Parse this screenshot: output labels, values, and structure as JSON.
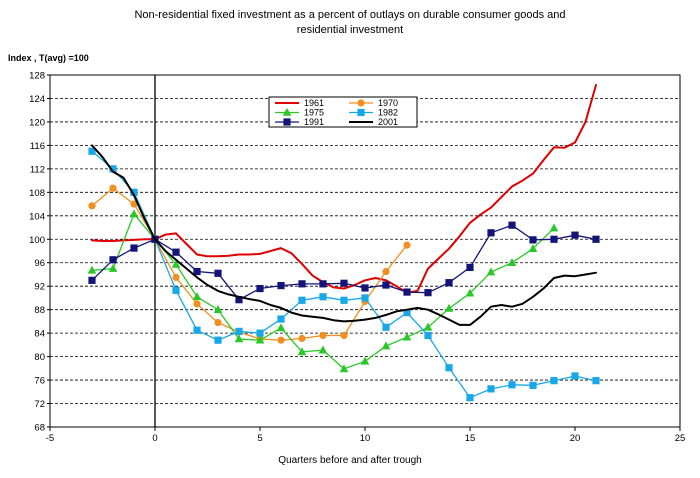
{
  "chart_data": {
    "type": "line",
    "title_line1": "Non-residential fixed investment as a percent of outlays on durable consumer goods and",
    "title_line2": "residential investment",
    "xlabel": "Quarters before and after trough",
    "ylabel": "Index , T(avg) =100",
    "xlim": [
      -5,
      25
    ],
    "ylim": [
      68,
      128
    ],
    "xticks": [
      -5,
      0,
      5,
      10,
      15,
      20,
      25
    ],
    "yticks": [
      68,
      72,
      76,
      80,
      84,
      88,
      92,
      96,
      100,
      104,
      108,
      112,
      116,
      120,
      124,
      128
    ],
    "legend_position": "top-center",
    "series": [
      {
        "name": "1961",
        "color": "#e00000",
        "marker": "none",
        "width": 2,
        "x": [
          -3,
          -2.5,
          -2,
          -1.5,
          -1,
          -0.5,
          0,
          0.5,
          1,
          1.5,
          2,
          2.5,
          3,
          3.5,
          4,
          4.5,
          5,
          5.5,
          6,
          6.5,
          7,
          7.5,
          8,
          8.5,
          9,
          9.5,
          10,
          10.5,
          11,
          11.5,
          12,
          12.5,
          13,
          13.5,
          14,
          14.5,
          15,
          15.5,
          16,
          16.5,
          17,
          17.5,
          18,
          18.5,
          19,
          19.5,
          20,
          20.5,
          21
        ],
        "y": [
          99.8,
          99.7,
          99.7,
          99.8,
          99.9,
          100,
          100,
          100.8,
          101,
          99.2,
          97.4,
          97.1,
          97.1,
          97.2,
          97.4,
          97.4,
          97.5,
          98,
          98.5,
          97.6,
          95.8,
          93.8,
          92.7,
          91.8,
          91.6,
          92.2,
          93,
          93.4,
          93,
          92,
          90.9,
          91.2,
          95,
          96.7,
          98.4,
          100.5,
          102.8,
          104.2,
          105.4,
          107.2,
          109,
          110,
          111.2,
          113.5,
          115.7,
          115.6,
          116.5,
          120,
          126.3
        ]
      },
      {
        "name": "1970",
        "color": "#f09020",
        "marker": "circle",
        "width": 1.3,
        "x": [
          -3,
          -2,
          -1,
          0,
          1,
          2,
          3,
          4,
          5,
          6,
          7,
          8,
          9,
          10,
          11,
          12
        ],
        "y": [
          105.7,
          108.7,
          106,
          100,
          93.5,
          89,
          85.8,
          84.2,
          83,
          82.8,
          83.1,
          83.6,
          83.6,
          89.4,
          94.5,
          99
        ]
      },
      {
        "name": "1975",
        "color": "#28c828",
        "marker": "triangle",
        "width": 1.3,
        "x": [
          -3,
          -2,
          -1,
          0,
          1,
          2,
          3,
          4,
          5,
          6,
          7,
          8,
          9,
          10,
          11,
          12,
          13,
          14,
          15,
          16,
          17,
          18,
          19
        ],
        "y": [
          94.7,
          95,
          104.3,
          100,
          95.7,
          90.2,
          88,
          83,
          82.8,
          84.9,
          80.8,
          81.1,
          77.9,
          79.2,
          81.8,
          83.3,
          85,
          88.2,
          90.8,
          94.4,
          96,
          98.4,
          101.9
        ]
      },
      {
        "name": "1982",
        "color": "#18a8e8",
        "marker": "square",
        "width": 1.3,
        "x": [
          -3,
          -2,
          -1,
          0,
          1,
          2,
          3,
          4,
          5,
          6,
          7,
          8,
          9,
          10,
          11,
          12,
          13,
          14,
          15,
          16,
          17,
          18,
          19,
          20,
          21
        ],
        "y": [
          115,
          112,
          108,
          100,
          91.3,
          84.5,
          82.8,
          84.3,
          84,
          86.4,
          89.6,
          90.2,
          89.6,
          90,
          85,
          87.5,
          83.6,
          78.1,
          73,
          74.5,
          75.2,
          75.1,
          75.9,
          76.7,
          75.9
        ]
      },
      {
        "name": "1991",
        "color": "#141478",
        "marker": "square",
        "width": 1.3,
        "x": [
          -3,
          -2,
          -1,
          0,
          1,
          2,
          3,
          4,
          5,
          6,
          7,
          8,
          9,
          10,
          11,
          12,
          13,
          14,
          15,
          16,
          17,
          18,
          19,
          20,
          21
        ],
        "y": [
          93,
          96.5,
          98.5,
          100,
          97.8,
          94.5,
          94.2,
          89.7,
          91.6,
          92.1,
          92.4,
          92.4,
          92.5,
          91.7,
          92.2,
          91,
          90.9,
          92.6,
          95.2,
          101.1,
          102.4,
          99.9,
          100,
          100.7,
          100
        ]
      },
      {
        "name": "2001",
        "color": "#000000",
        "marker": "none",
        "width": 2,
        "x": [
          -3,
          -2.5,
          -2,
          -1.5,
          -1,
          -0.5,
          0,
          0.5,
          1,
          1.5,
          2,
          2.5,
          3,
          3.5,
          4,
          4.5,
          5,
          5.5,
          6,
          6.5,
          7,
          7.5,
          8,
          8.5,
          9,
          9.5,
          10,
          10.5,
          11,
          11.5,
          12,
          12.5,
          13,
          13.5,
          14,
          14.5,
          15,
          15.5,
          16,
          16.5,
          17,
          17.5,
          18,
          18.5,
          19,
          19.5,
          20,
          20.5,
          21
        ],
        "y": [
          116,
          114,
          111.5,
          110.5,
          107.5,
          103.5,
          100,
          98,
          96.5,
          95,
          93.5,
          92.2,
          91.2,
          90.6,
          90.2,
          89.8,
          89.5,
          88.8,
          88.3,
          87.5,
          87,
          86.8,
          86.6,
          86.2,
          86,
          86.1,
          86.3,
          86.6,
          87.1,
          87.7,
          88,
          88.3,
          88,
          87.2,
          86.3,
          85.4,
          85.4,
          86.8,
          88.5,
          88.8,
          88.5,
          89,
          90.2,
          91.6,
          93.4,
          93.8,
          93.7,
          94,
          94.3
        ]
      }
    ]
  }
}
